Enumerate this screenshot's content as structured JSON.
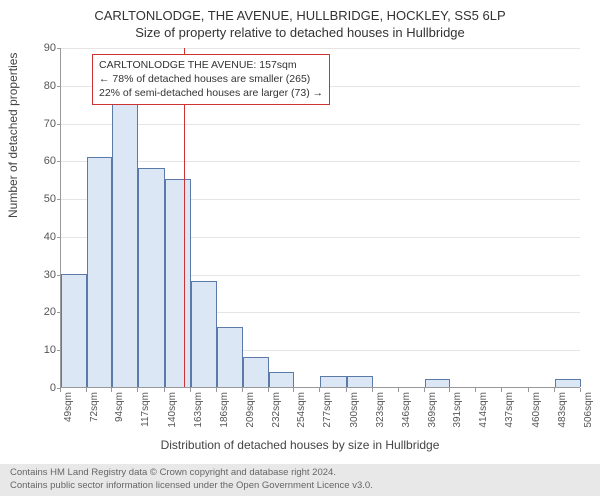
{
  "title_main": "CARLTONLODGE, THE AVENUE, HULLBRIDGE, HOCKLEY, SS5 6LP",
  "title_sub": "Size of property relative to detached houses in Hullbridge",
  "ylabel": "Number of detached properties",
  "xlabel": "Distribution of detached houses by size in Hullbridge",
  "histogram": {
    "type": "histogram",
    "bins": [
      49,
      72,
      94,
      117,
      140,
      163,
      186,
      209,
      232,
      254,
      277,
      300,
      323,
      346,
      369,
      391,
      414,
      437,
      460,
      483,
      506
    ],
    "values": [
      30,
      61,
      75,
      58,
      55,
      28,
      16,
      8,
      4,
      0,
      3,
      3,
      0,
      0,
      2,
      0,
      0,
      0,
      0,
      2
    ],
    "bar_fill": "#dbe7f5",
    "bar_stroke": "#5c7aa8",
    "ylim": [
      0,
      90
    ],
    "ytick_step": 10,
    "grid_color": "#e5e5e5",
    "background": "#ffffff",
    "axis_color": "#999999",
    "xtick_unit": "sqm",
    "bin_label_step": 23
  },
  "marker": {
    "value_sqm": 157,
    "color": "#cc3333"
  },
  "annotation": {
    "line1": "CARLTONLODGE THE AVENUE: 157sqm",
    "line2": "← 78% of detached houses are smaller (265)",
    "line3": "22% of semi-detached houses are larger (73) →",
    "border_color": "#cc3333"
  },
  "footer": {
    "line1": "Contains HM Land Registry data © Crown copyright and database right 2024.",
    "line2": "Contains public sector information licensed under the Open Government Licence v3.0."
  }
}
